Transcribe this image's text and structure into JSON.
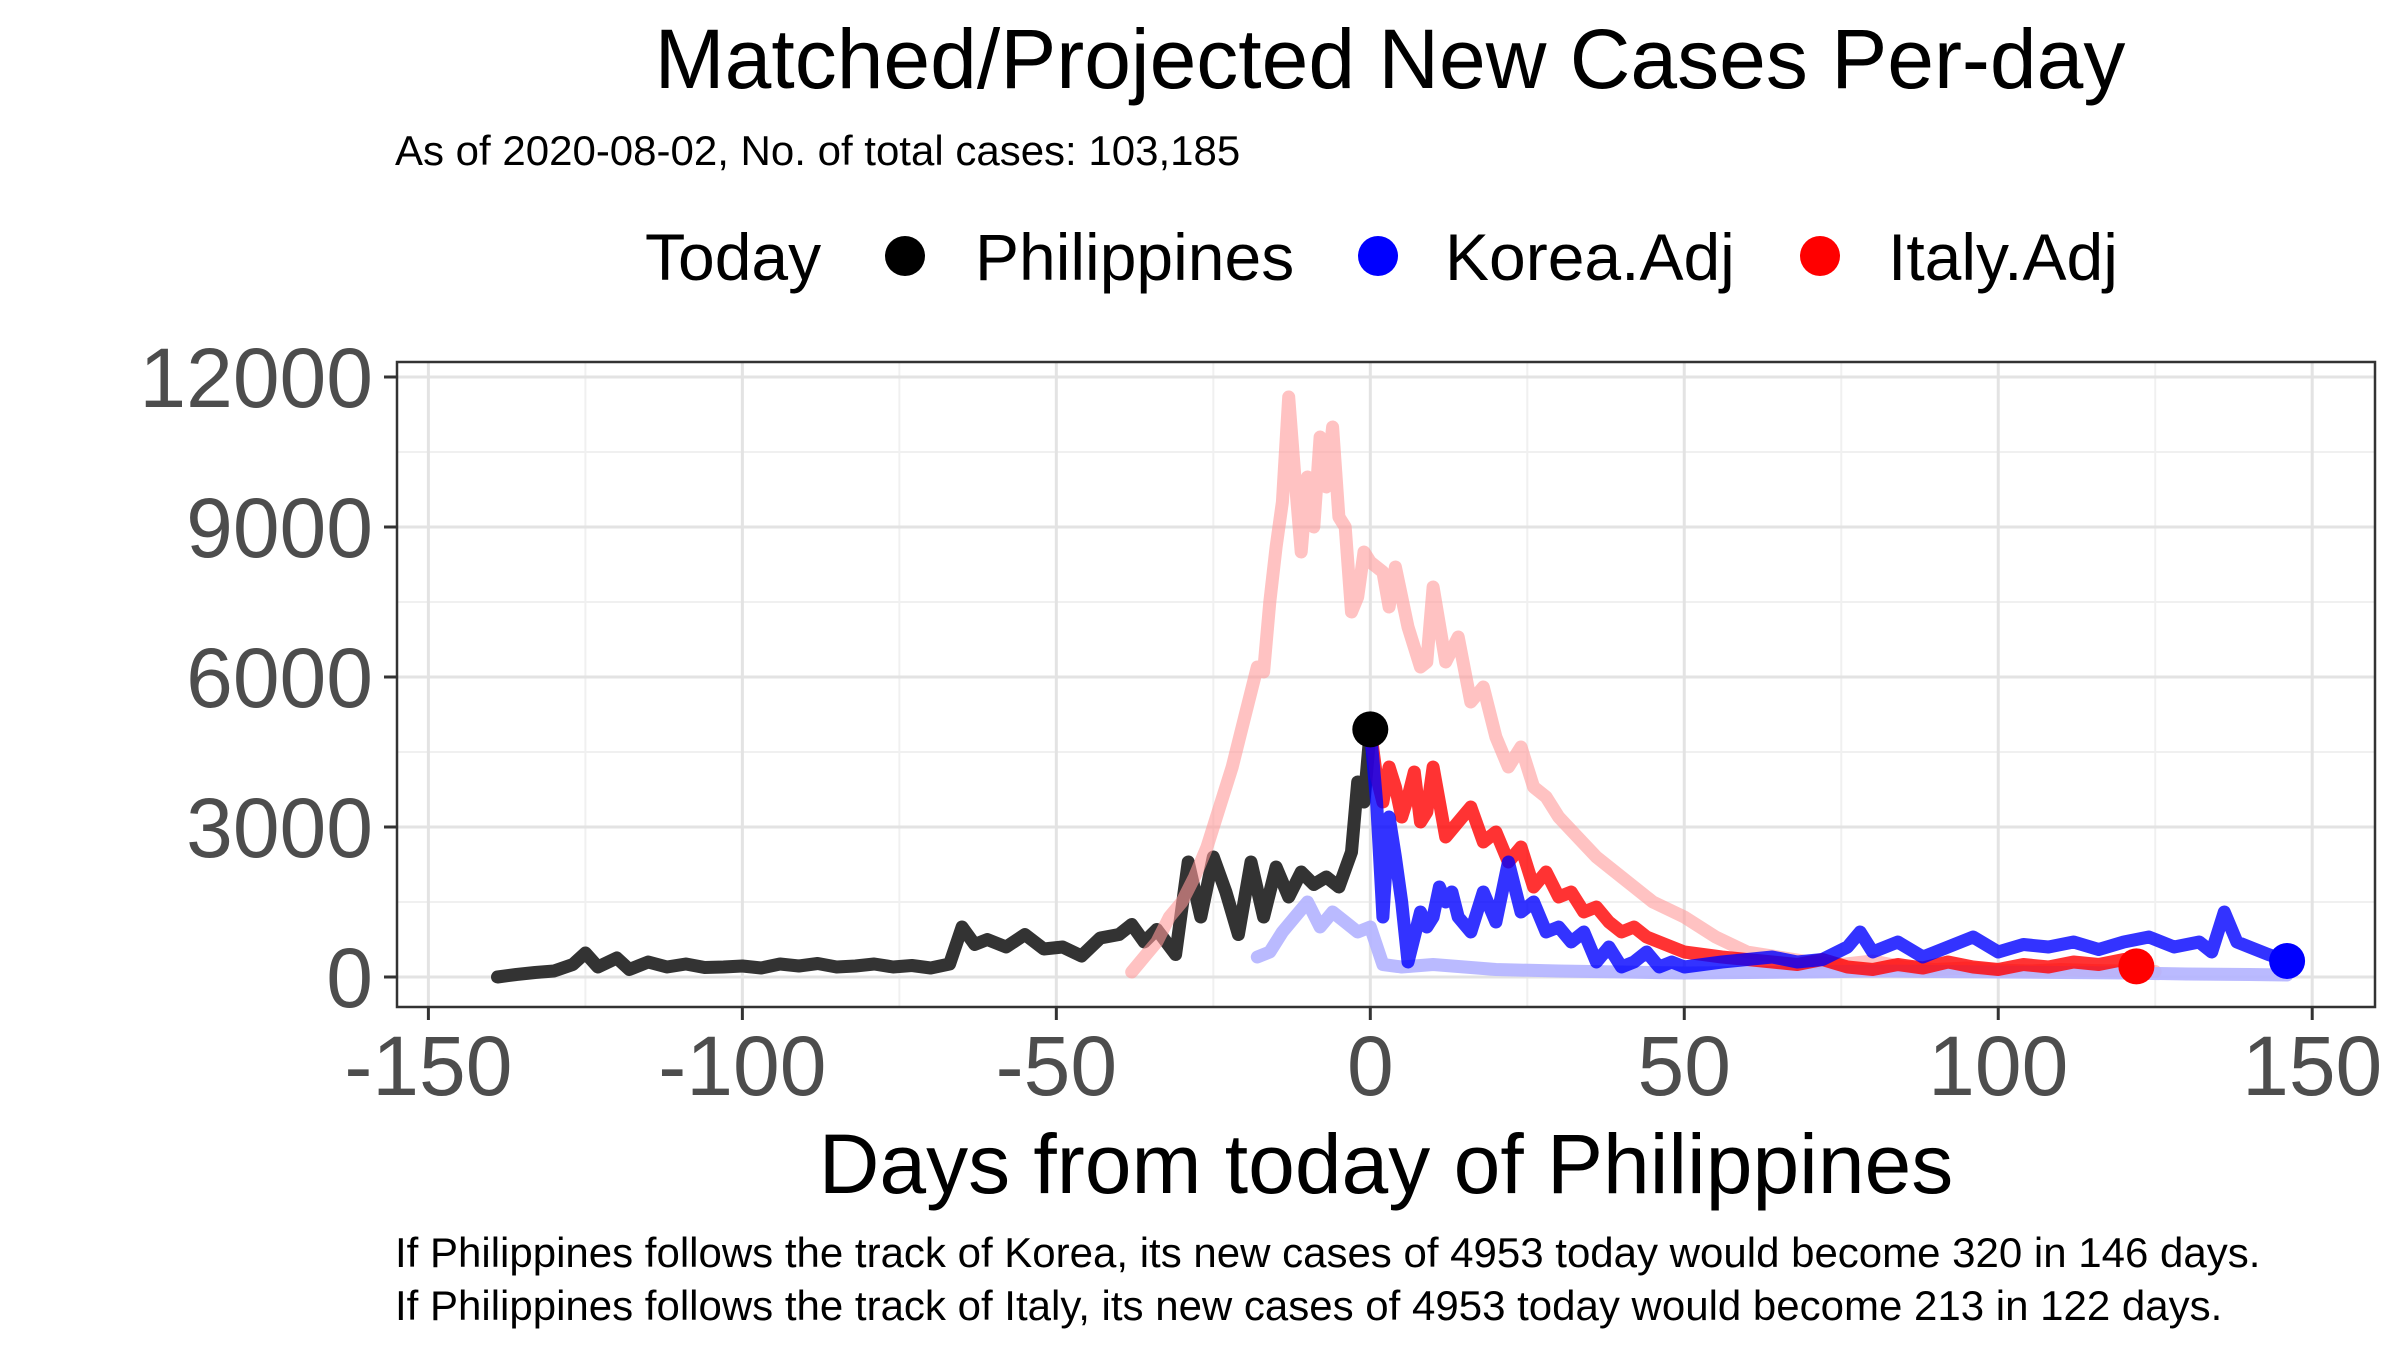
{
  "chart_data": {
    "type": "line",
    "title": "Matched/Projected New Cases Per-day",
    "subtitle": "As of 2020-08-02, No. of total cases: 103,185",
    "xlabel": "Days from today of Philippines",
    "ylabel": "",
    "xlim": [
      -155,
      160
    ],
    "ylim": [
      -600,
      12300
    ],
    "x_ticks": [
      -150,
      -100,
      -50,
      0,
      50,
      100,
      150
    ],
    "x_tick_labels": [
      "-150",
      "-100",
      "-50",
      "0",
      "50",
      "100",
      "150"
    ],
    "y_ticks": [
      0,
      3000,
      6000,
      9000,
      12000
    ],
    "y_tick_labels": [
      "0",
      "3000",
      "6000",
      "9000",
      "12000"
    ],
    "grid": true,
    "legend_position": "top",
    "legend": {
      "title": "Today",
      "items": [
        {
          "label": "Philippines",
          "color": "#000000"
        },
        {
          "label": "Korea.Adj",
          "color": "#0000ff"
        },
        {
          "label": "Italy.Adj",
          "color": "#ff0000"
        }
      ]
    },
    "captions": [
      "If Philippines follows the track of Korea, its new cases of 4953 today would become 320 in 146 days.",
      "If Philippines follows the track of Italy, its new cases of 4953 today would become 213 in 122 days."
    ],
    "series": [
      {
        "name": "Philippines",
        "color": "#333333",
        "opacity": 1,
        "x": [
          -139,
          -136,
          -133,
          -130,
          -127,
          -125,
          -123,
          -120,
          -118,
          -115,
          -112,
          -109,
          -106,
          -103,
          -100,
          -97,
          -94,
          -91,
          -88,
          -85,
          -82,
          -79,
          -76,
          -73,
          -70,
          -67,
          -65,
          -63,
          -61,
          -58,
          -55,
          -52,
          -49,
          -46,
          -43,
          -40,
          -38,
          -36,
          -34,
          -31,
          -29,
          -27,
          -25,
          -23,
          -21,
          -19,
          -17,
          -15,
          -13,
          -11,
          -9,
          -7,
          -5,
          -3,
          -2,
          -1,
          0
        ],
        "y": [
          0,
          50,
          90,
          120,
          250,
          480,
          200,
          380,
          150,
          300,
          200,
          260,
          190,
          200,
          220,
          180,
          260,
          220,
          270,
          200,
          220,
          260,
          200,
          230,
          180,
          260,
          1000,
          650,
          750,
          600,
          850,
          560,
          600,
          420,
          780,
          850,
          1050,
          700,
          950,
          450,
          2300,
          1200,
          2400,
          1700,
          850,
          2300,
          1200,
          2200,
          1600,
          2100,
          1850,
          2000,
          1800,
          2500,
          3900,
          3500,
          4953
        ]
      },
      {
        "name": "Italy (projection basis)",
        "color": "#ff9999",
        "opacity": 0.6,
        "x": [
          -38,
          -36,
          -34,
          -32,
          -30,
          -28,
          -26,
          -24,
          -22,
          -20,
          -18,
          -17,
          -16,
          -15,
          -14,
          -13,
          -12,
          -11,
          -10,
          -9,
          -8,
          -7,
          -6,
          -5,
          -4,
          -3,
          -2,
          -1,
          0,
          2,
          3,
          4,
          6,
          8,
          9,
          10,
          12,
          14,
          16,
          18,
          20,
          22,
          24,
          26,
          28,
          30,
          33,
          36,
          40,
          45,
          50,
          55,
          60,
          65,
          70,
          75,
          80,
          85,
          90,
          95,
          100,
          105,
          110,
          115,
          120,
          125
        ],
        "y": [
          100,
          400,
          700,
          1200,
          1500,
          2000,
          2600,
          3400,
          4200,
          5200,
          6200,
          6100,
          7500,
          8600,
          9500,
          11600,
          10000,
          8500,
          10000,
          9000,
          10800,
          9800,
          11000,
          9200,
          9000,
          7300,
          7600,
          8500,
          8300,
          8100,
          7400,
          8200,
          7000,
          6200,
          6300,
          7800,
          6300,
          6800,
          5500,
          5800,
          4800,
          4200,
          4600,
          3800,
          3600,
          3200,
          2800,
          2400,
          2000,
          1500,
          1200,
          800,
          500,
          400,
          300,
          250,
          320,
          200,
          150,
          180,
          140,
          120,
          150,
          130,
          120,
          110
        ]
      },
      {
        "name": "Korea (projection basis)",
        "color": "#b3b3ff",
        "opacity": 0.9,
        "x": [
          -18,
          -16,
          -14,
          -12,
          -10,
          -8,
          -6,
          -4,
          -2,
          0,
          2,
          5,
          10,
          15,
          20,
          30,
          40,
          50,
          60,
          70,
          80,
          90,
          100,
          110,
          120,
          130,
          140,
          146
        ],
        "y": [
          400,
          500,
          900,
          1200,
          1500,
          1000,
          1300,
          1100,
          900,
          1000,
          250,
          200,
          250,
          200,
          150,
          120,
          100,
          80,
          90,
          100,
          120,
          110,
          100,
          90,
          80,
          60,
          50,
          40
        ]
      },
      {
        "name": "Italy.Adj",
        "color": "#ff0000",
        "opacity": 0.8,
        "x": [
          0,
          1,
          2,
          3,
          4,
          5,
          6,
          7,
          8,
          9,
          10,
          11,
          12,
          14,
          16,
          18,
          20,
          22,
          24,
          26,
          28,
          30,
          32,
          34,
          36,
          38,
          40,
          42,
          44,
          46,
          48,
          50,
          53,
          56,
          60,
          64,
          68,
          72,
          76,
          80,
          84,
          88,
          92,
          96,
          100,
          104,
          108,
          112,
          116,
          120,
          122
        ],
        "y": [
          4953,
          4000,
          3500,
          4200,
          3800,
          3200,
          3600,
          4100,
          3100,
          3300,
          4200,
          3500,
          2800,
          3100,
          3400,
          2700,
          2900,
          2300,
          2600,
          1800,
          2100,
          1600,
          1700,
          1300,
          1400,
          1100,
          900,
          1000,
          800,
          700,
          600,
          500,
          450,
          400,
          350,
          300,
          250,
          350,
          200,
          150,
          250,
          180,
          300,
          200,
          150,
          250,
          200,
          300,
          250,
          350,
          213
        ]
      },
      {
        "name": "Korea.Adj",
        "color": "#0000ff",
        "opacity": 0.8,
        "x": [
          0,
          1,
          2,
          3,
          4,
          5,
          6,
          8,
          9,
          10,
          11,
          12,
          13,
          14,
          16,
          18,
          20,
          22,
          24,
          26,
          28,
          30,
          32,
          34,
          36,
          38,
          40,
          42,
          44,
          46,
          48,
          50,
          53,
          56,
          60,
          64,
          68,
          72,
          76,
          78,
          80,
          84,
          88,
          92,
          96,
          100,
          104,
          108,
          112,
          116,
          120,
          124,
          128,
          132,
          134,
          136,
          138,
          140,
          143,
          146
        ],
        "y": [
          4953,
          3500,
          1200,
          3200,
          2400,
          1500,
          300,
          1300,
          1000,
          1200,
          1800,
          1500,
          1700,
          1200,
          900,
          1700,
          1100,
          2300,
          1300,
          1500,
          900,
          1000,
          700,
          900,
          300,
          600,
          200,
          300,
          500,
          200,
          300,
          200,
          250,
          300,
          350,
          400,
          300,
          350,
          600,
          900,
          500,
          700,
          400,
          600,
          800,
          500,
          650,
          600,
          700,
          550,
          700,
          800,
          600,
          700,
          500,
          1300,
          700,
          600,
          450,
          320
        ]
      }
    ],
    "markers": [
      {
        "series": "Philippines",
        "x": 0,
        "y": 4953,
        "color": "#000000"
      },
      {
        "series": "Italy.Adj",
        "x": 122,
        "y": 213,
        "color": "#ff0000"
      },
      {
        "series": "Korea.Adj",
        "x": 146,
        "y": 320,
        "color": "#0000ff"
      }
    ]
  }
}
